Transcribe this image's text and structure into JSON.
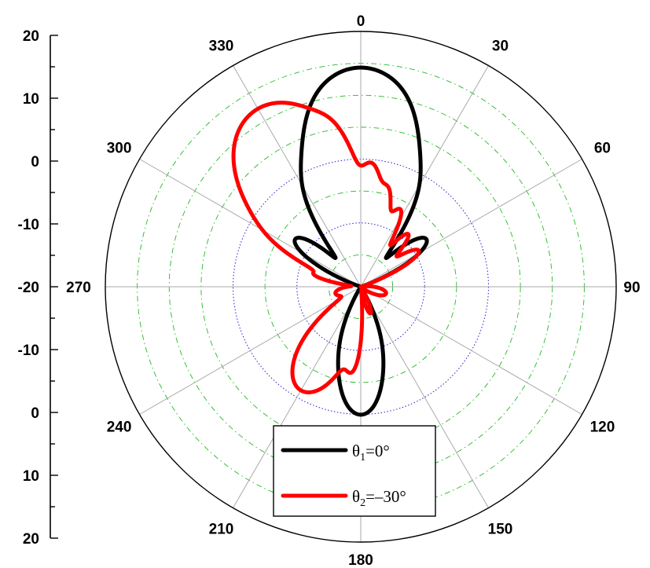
{
  "chart_data": {
    "type": "polar",
    "title": "",
    "angle_unit": "degrees",
    "angle_ticks": [
      "0",
      "30",
      "60",
      "90",
      "120",
      "150",
      "180",
      "210",
      "240",
      "270",
      "300",
      "330"
    ],
    "radial_axis": {
      "range_db": [
        -20,
        20
      ],
      "tick_labels": [
        "20",
        "10",
        "0",
        "-10",
        "-20",
        "-10",
        "0",
        "10",
        "20"
      ],
      "tick_values_db": [
        20,
        10,
        0,
        -10,
        -20,
        -10,
        0,
        10,
        20
      ]
    },
    "grid": true,
    "legend": {
      "placement": "bottom-center",
      "entries": [
        {
          "theta": "θ",
          "sub": "1",
          "rest": "=0°",
          "color": "#000000"
        },
        {
          "theta": "θ",
          "sub": "2",
          "rest": "=–30°",
          "color": "#ff0000"
        }
      ]
    },
    "series": [
      {
        "key": "theta1",
        "color": "#000000",
        "lobes": [
          {
            "angle": 0,
            "peak_db": 14.3,
            "width_deg": 10
          },
          {
            "angle": -11,
            "peak_db": 0.6,
            "width_deg": 5
          },
          {
            "angle": 11,
            "peak_db": 0.6,
            "width_deg": 5
          },
          {
            "angle": -27,
            "peak_db": -3.5,
            "width_deg": 5
          },
          {
            "angle": 27,
            "peak_db": -3.5,
            "width_deg": 5
          },
          {
            "angle": -54,
            "peak_db": -7.5,
            "width_deg": 6
          },
          {
            "angle": 54,
            "peak_db": -7.5,
            "width_deg": 6
          },
          {
            "angle": 180,
            "peak_db": 0,
            "width_deg": 8
          },
          {
            "angle": 163,
            "peak_db": -13,
            "width_deg": 6
          },
          {
            "angle": 197,
            "peak_db": -13,
            "width_deg": 6
          }
        ]
      },
      {
        "key": "theta2",
        "color": "#ff0000",
        "lobes": [
          {
            "angle": -30,
            "peak_db": 12.2,
            "width_deg": 11
          },
          {
            "angle": -11,
            "peak_db": 1.6,
            "width_deg": 4
          },
          {
            "angle": 5,
            "peak_db": -1.2,
            "width_deg": 4
          },
          {
            "angle": 15,
            "peak_db": -4.2,
            "width_deg": 4
          },
          {
            "angle": 27,
            "peak_db": -6.6,
            "width_deg": 4
          },
          {
            "angle": 42,
            "peak_db": -9.2,
            "width_deg": 4
          },
          {
            "angle": 58,
            "peak_db": -9.6,
            "width_deg": 5
          },
          {
            "angle": -59,
            "peak_db": -7.2,
            "width_deg": 5
          },
          {
            "angle": -75,
            "peak_db": -13.5,
            "width_deg": 4
          },
          {
            "angle": 210,
            "peak_db": -1.3,
            "width_deg": 10
          },
          {
            "angle": 186,
            "peak_db": -7.6,
            "width_deg": 4
          },
          {
            "angle": 160,
            "peak_db": -17,
            "width_deg": 6
          },
          {
            "angle": 105,
            "peak_db": -17.5,
            "width_deg": 12
          },
          {
            "angle": 255,
            "peak_db": -17.5,
            "width_deg": 12
          }
        ]
      }
    ]
  }
}
